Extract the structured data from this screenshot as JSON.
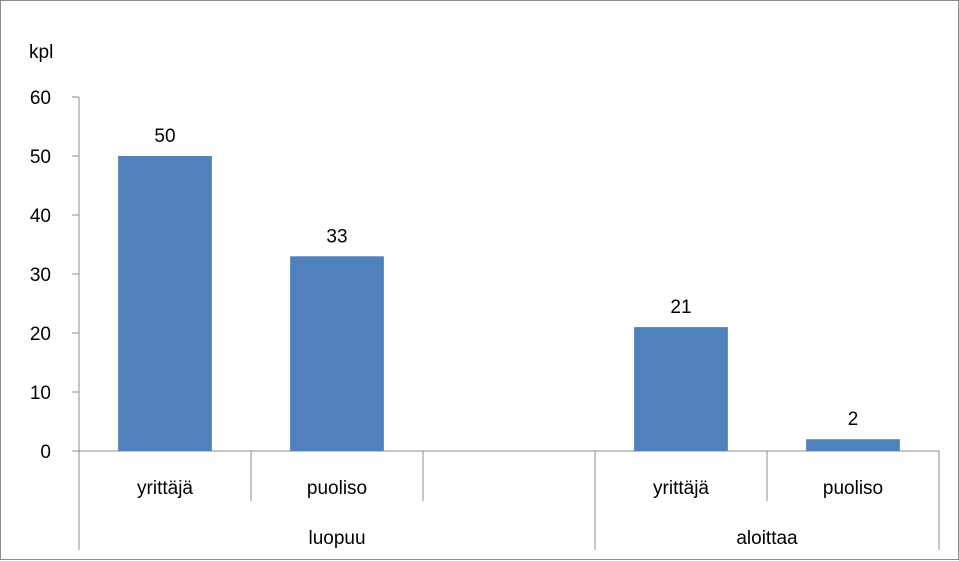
{
  "chart_data": {
    "type": "bar",
    "ylabel": "kpl",
    "ylim": [
      0,
      60
    ],
    "yticks": [
      0,
      10,
      20,
      30,
      40,
      50,
      60
    ],
    "groups": [
      {
        "label": "luopuu",
        "categories": [
          "yrittäjä",
          "puoliso",
          ""
        ],
        "values": [
          50,
          33,
          null
        ]
      },
      {
        "label": "aloittaa",
        "categories": [
          "yrittäjä",
          "puoliso"
        ],
        "values": [
          21,
          2
        ]
      }
    ],
    "data_labels": true,
    "grid": false,
    "legend": "none",
    "bar_color": "#4f81bd"
  }
}
